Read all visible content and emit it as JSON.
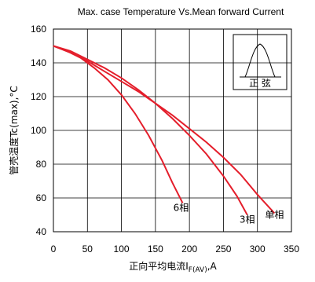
{
  "chart_data": {
    "type": "line",
    "title": "Max. case Temperature Vs.Mean forward Current",
    "xlabel_main": "正向平均电流I",
    "xlabel_sub": "F(AV)",
    "xlabel_unit": ",A",
    "ylabel": "管壳温度Tc(max),°C",
    "xlim": [
      0,
      350
    ],
    "ylim": [
      40,
      160
    ],
    "x_ticks": [
      0,
      50,
      100,
      150,
      200,
      250,
      300,
      350
    ],
    "y_ticks": [
      40,
      60,
      80,
      100,
      120,
      140,
      160
    ],
    "grid": true,
    "series": [
      {
        "name": "6相",
        "x": [
          0,
          20,
          40,
          60,
          80,
          100,
          120,
          140,
          160,
          175,
          190
        ],
        "y": [
          150,
          147,
          143,
          137,
          130,
          121,
          110,
          97,
          82,
          69,
          57
        ]
      },
      {
        "name": "3相",
        "x": [
          0,
          25,
          50,
          75,
          100,
          125,
          150,
          175,
          200,
          225,
          250,
          270,
          285
        ],
        "y": [
          150,
          147,
          142,
          137,
          131,
          124,
          116,
          107,
          97,
          86,
          73,
          61,
          50
        ]
      },
      {
        "name": "单相",
        "x": [
          0,
          25,
          50,
          75,
          100,
          125,
          150,
          175,
          200,
          225,
          250,
          275,
          300,
          325
        ],
        "y": [
          150,
          146,
          141,
          135,
          129,
          123,
          116,
          109,
          101,
          93,
          84,
          74,
          62,
          51
        ]
      }
    ],
    "inset_label": "正  弦",
    "color": "#e41e2b"
  }
}
